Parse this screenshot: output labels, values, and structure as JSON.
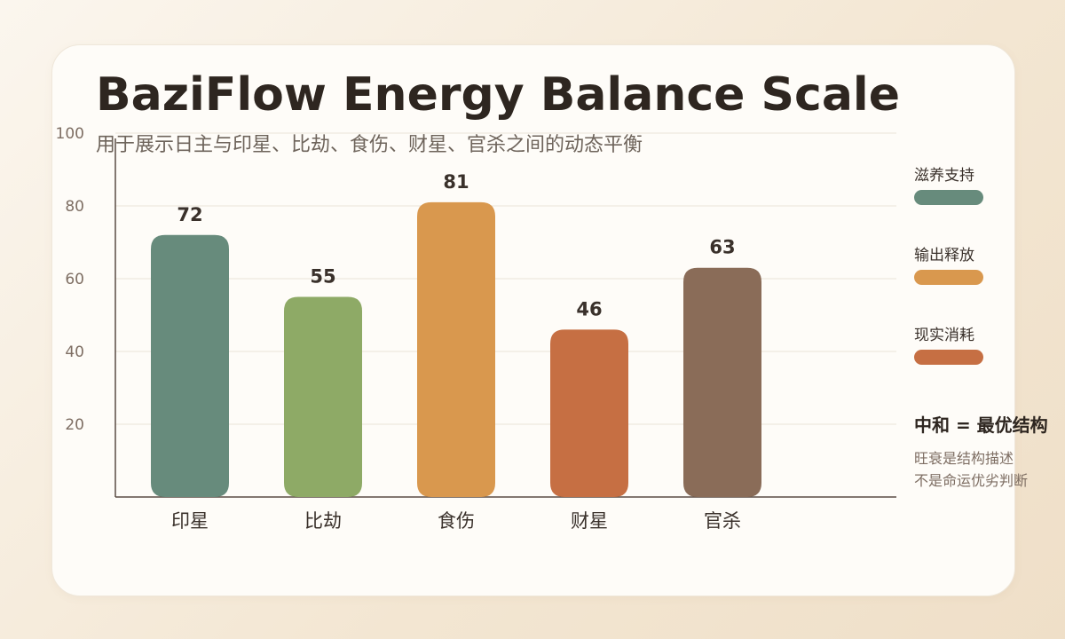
{
  "title": "BaziFlow Energy Balance Scale",
  "subtitle": "用于展示日主与印星、比劫、食伤、财星、官杀之间的动态平衡",
  "legend": [
    {
      "label": "滋养支持",
      "color": "#678b7c"
    },
    {
      "label": "输出释放",
      "color": "#d9984e"
    },
    {
      "label": "现实消耗",
      "color": "#c66f43"
    }
  ],
  "note": {
    "title": "中和 = 最优结构",
    "lines": [
      "旺衰是结构描述",
      "不是命运优劣判断"
    ]
  },
  "chart_data": {
    "type": "bar",
    "title": "BaziFlow Energy Balance Scale",
    "subtitle": "用于展示日主与印星、比劫、食伤、财星、官杀之间的动态平衡",
    "categories": [
      "印星",
      "比劫",
      "食伤",
      "财星",
      "官杀"
    ],
    "values": [
      72,
      55,
      81,
      46,
      63
    ],
    "colors": [
      "#678b7c",
      "#8eaa66",
      "#d9984e",
      "#c66f43",
      "#8a6c58"
    ],
    "ylim": [
      0,
      100
    ],
    "yticks": [
      20,
      40,
      60,
      80,
      100
    ],
    "grid": true,
    "legend_position": "right",
    "xlabel": "",
    "ylabel": ""
  }
}
